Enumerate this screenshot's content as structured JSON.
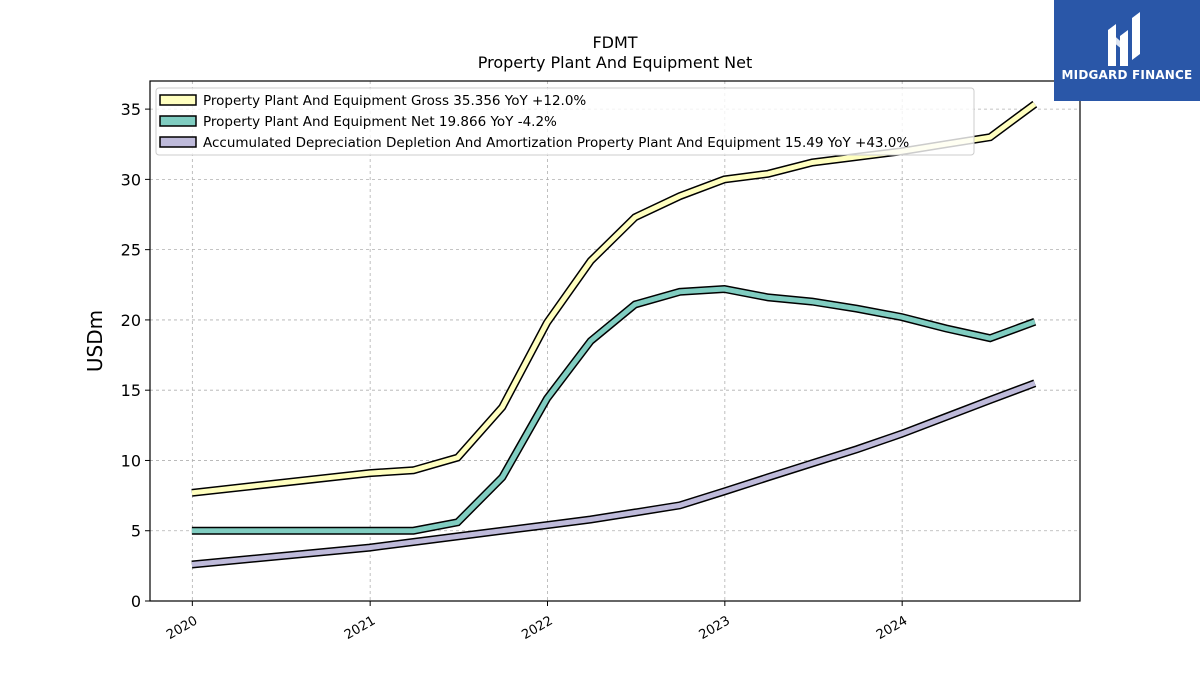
{
  "brand": {
    "name": "MIDGARD FINANCE",
    "color": "#2a57a8"
  },
  "chart_data": {
    "type": "line",
    "title": "FDMT",
    "subtitle": "Property Plant And Equipment Net",
    "xlabel": "",
    "ylabel": "USDm",
    "ylim": [
      0,
      37
    ],
    "yticks": [
      0,
      5,
      10,
      15,
      20,
      25,
      30,
      35
    ],
    "xticks": [
      "2020",
      "2021",
      "2022",
      "2023",
      "2024"
    ],
    "grid": true,
    "legend_position": "top-left",
    "series": [
      {
        "name": "Property Plant And Equipment Gross",
        "legend_label": "Property Plant And Equipment Gross  35.356 YoY +12.0%",
        "color": "#ffffbf",
        "x": [
          "2019-12-31",
          "2020-12-31",
          "2021-03-31",
          "2021-06-30",
          "2021-09-30",
          "2021-12-31",
          "2022-03-31",
          "2022-06-30",
          "2022-09-30",
          "2022-12-31",
          "2023-03-31",
          "2023-06-30",
          "2023-09-30",
          "2023-12-31",
          "2024-03-31",
          "2024-06-30",
          "2024-09-30"
        ],
        "values": [
          7.7,
          9.1,
          9.3,
          10.2,
          13.8,
          19.8,
          24.2,
          27.3,
          28.8,
          30.0,
          30.4,
          31.2,
          31.6,
          32.0,
          32.5,
          33.0,
          35.356
        ]
      },
      {
        "name": "Property Plant And Equipment Net",
        "legend_label": "Property Plant And Equipment Net  19.866 YoY -4.2%",
        "color": "#80cdc1",
        "x": [
          "2019-12-31",
          "2020-12-31",
          "2021-03-31",
          "2021-06-30",
          "2021-09-30",
          "2021-12-31",
          "2022-03-31",
          "2022-06-30",
          "2022-09-30",
          "2022-12-31",
          "2023-03-31",
          "2023-06-30",
          "2023-09-30",
          "2023-12-31",
          "2024-03-31",
          "2024-06-30",
          "2024-09-30"
        ],
        "values": [
          5.0,
          5.0,
          5.0,
          5.6,
          8.8,
          14.4,
          18.5,
          21.1,
          22.0,
          22.2,
          21.6,
          21.3,
          20.8,
          20.2,
          19.4,
          18.7,
          19.866
        ]
      },
      {
        "name": "Accumulated Depreciation Depletion And Amortization Property Plant And Equipment",
        "legend_label": "Accumulated Depreciation Depletion And Amortization Property Plant And Equipment  15.49 YoY +43.0%",
        "color": "#bebada",
        "x": [
          "2019-12-31",
          "2020-12-31",
          "2021-03-31",
          "2021-06-30",
          "2021-09-30",
          "2021-12-31",
          "2022-03-31",
          "2022-06-30",
          "2022-09-30",
          "2022-12-31",
          "2023-03-31",
          "2023-06-30",
          "2023-09-30",
          "2023-12-31",
          "2024-03-31",
          "2024-06-30",
          "2024-09-30"
        ],
        "values": [
          2.6,
          3.8,
          4.2,
          4.6,
          5.0,
          5.4,
          5.8,
          6.3,
          6.8,
          7.8,
          8.8,
          9.8,
          10.8,
          11.9,
          13.1,
          14.3,
          15.49
        ]
      }
    ]
  }
}
